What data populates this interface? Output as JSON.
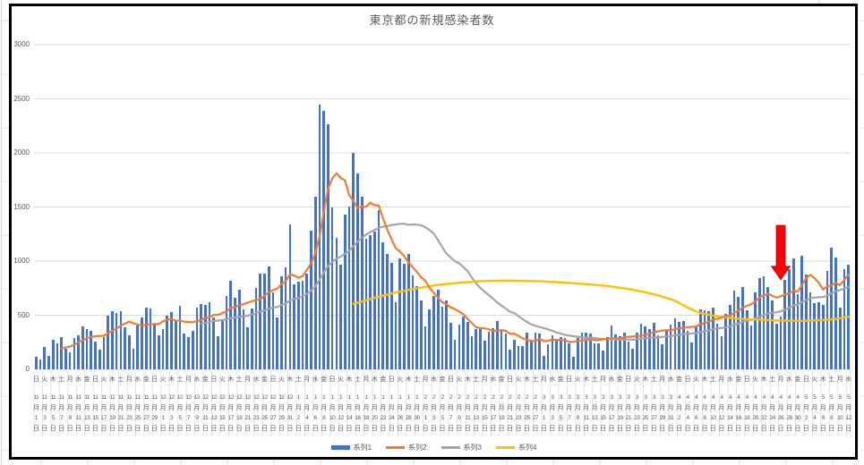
{
  "chart_data": {
    "type": "combo-bar-line",
    "title": "東京都の新規感染者数",
    "y_axis": {
      "min": 0,
      "max": 3000,
      "step": 500,
      "tick_labels": [
        "0",
        "500",
        "1000",
        "1500",
        "2000",
        "2500",
        "3000"
      ],
      "grid": true
    },
    "x_axis": {
      "label_interval_days": 2,
      "dow_cycle": [
        "日",
        "火",
        "木",
        "土",
        "月",
        "水",
        "金"
      ],
      "month_suffix": "月",
      "day_suffix": "日",
      "months": [
        {
          "m": "11",
          "days": [
            1,
            3,
            5,
            7,
            9,
            11,
            13,
            15,
            17,
            19,
            21,
            23,
            25,
            27,
            29
          ]
        },
        {
          "m": "12",
          "days": [
            1,
            3,
            5,
            7,
            9,
            11,
            13,
            15,
            17,
            19,
            21,
            23,
            25,
            27,
            29,
            31
          ]
        },
        {
          "m": "1",
          "days": [
            2,
            4,
            6,
            8,
            10,
            12,
            14,
            16,
            18,
            20,
            22,
            24,
            26,
            28,
            30
          ]
        },
        {
          "m": "2",
          "days": [
            1,
            3,
            5,
            7,
            9,
            11,
            13,
            15,
            17,
            19,
            21,
            23,
            25,
            27
          ]
        },
        {
          "m": "3",
          "days": [
            1,
            3,
            5,
            7,
            9,
            11,
            13,
            15,
            17,
            19,
            21,
            23,
            25,
            27,
            29,
            31
          ]
        },
        {
          "m": "4",
          "days": [
            2,
            4,
            6,
            8,
            10,
            12,
            14,
            16,
            18,
            20,
            22,
            24,
            26,
            28,
            30
          ]
        },
        {
          "m": "5",
          "days": [
            2,
            4,
            6,
            8,
            10,
            12
          ]
        }
      ]
    },
    "series": [
      {
        "name": "系列1",
        "type": "bar",
        "color": "#4472C4",
        "values": [
          116,
          87,
          209,
          122,
          269,
          242,
          294,
          189,
          157,
          293,
          317,
          393,
          374,
          352,
          255,
          180,
          298,
          493,
          534,
          522,
          539,
          391,
          314,
          186,
          401,
          481,
          570,
          561,
          418,
          311,
          372,
          500,
          533,
          449,
          584,
          327,
          299,
          352,
          572,
          602,
          595,
          621,
          480,
          305,
          460,
          678,
          822,
          664,
          736,
          556,
          392,
          563,
          748,
          888,
          884,
          949,
          708,
          481,
          856,
          944,
          1337,
          783,
          814,
          816,
          884,
          1278,
          1591,
          2447,
          2392,
          2268,
          1494,
          1219,
          970,
          1433,
          1502,
          2001,
          1809,
          1592,
          1204,
          1240,
          1274,
          1471,
          1175,
          1070,
          986,
          618,
          1026,
          973,
          1064,
          868,
          769,
          633,
          393,
          556,
          676,
          734,
          577,
          639,
          429,
          276,
          412,
          491,
          434,
          307,
          369,
          371,
          266,
          350,
          378,
          445,
          353,
          327,
          178,
          275,
          213,
          213,
          340,
          270,
          337,
          329,
          121,
          232,
          316,
          279,
          301,
          293,
          237,
          116,
          290,
          340,
          335,
          330,
          239,
          237,
          175,
          300,
          409,
          323,
          303,
          342,
          256,
          187,
          337,
          420,
          394,
          376,
          430,
          313,
          234,
          364,
          414,
          475,
          440,
          446,
          355,
          249,
          399,
          555,
          545,
          537,
          570,
          421,
          306,
          510,
          591,
          729,
          667,
          759,
          543,
          405,
          711,
          843,
          861,
          759,
          635,
          425,
          489,
          828,
          925,
          1027,
          698,
          1050,
          879,
          708,
          609,
          621,
          591,
          907,
          1121,
          1032,
          573,
          925,
          969
        ]
      },
      {
        "name": "系列2",
        "type": "line",
        "color": "#ED7D31",
        "derived": "moving_average_of_series1",
        "window": 7,
        "start_index": 6
      },
      {
        "name": "系列3",
        "type": "line",
        "color": "#A5A5A5",
        "derived": "moving_average_of_series1",
        "window": 28,
        "start_index": 39
      },
      {
        "name": "系列4",
        "type": "line",
        "color": "#FFC000",
        "points": [
          [
            75,
            605
          ],
          [
            80,
            660
          ],
          [
            85,
            710
          ],
          [
            90,
            750
          ],
          [
            95,
            780
          ],
          [
            100,
            800
          ],
          [
            105,
            815
          ],
          [
            110,
            820
          ],
          [
            115,
            817
          ],
          [
            120,
            812
          ],
          [
            125,
            802
          ],
          [
            130,
            788
          ],
          [
            135,
            770
          ],
          [
            140,
            742
          ],
          [
            144,
            712
          ],
          [
            148,
            672
          ],
          [
            151,
            635
          ],
          [
            154,
            570
          ],
          [
            157,
            520
          ],
          [
            160,
            497
          ],
          [
            163,
            480
          ],
          [
            166,
            468
          ],
          [
            170,
            460
          ],
          [
            174,
            453
          ],
          [
            178,
            449
          ],
          [
            182,
            449
          ],
          [
            186,
            455
          ],
          [
            189,
            465
          ],
          [
            192,
            487
          ]
        ]
      }
    ],
    "annotation": {
      "shape": "down-arrow",
      "color": "#FF0000",
      "border_color": "#C00000",
      "tip_day_index": 176,
      "tip_value": 828,
      "top_value": 1330,
      "shaft_width": 10,
      "head_width": 21,
      "head_height": 15
    }
  }
}
